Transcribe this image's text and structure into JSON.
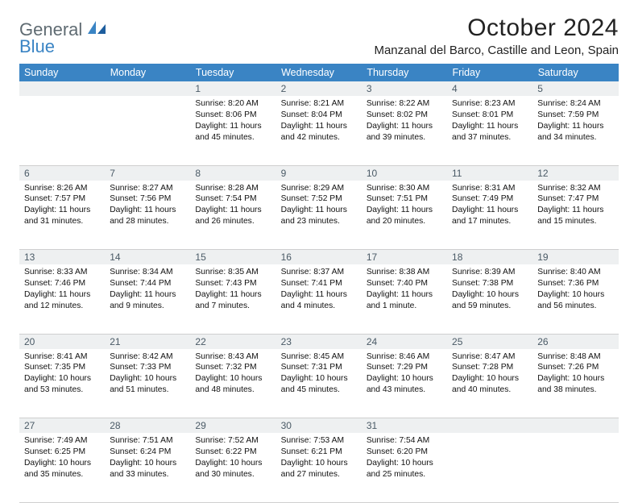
{
  "logo": {
    "general": "General",
    "blue": "Blue"
  },
  "title": "October 2024",
  "location": "Manzanal del Barco, Castille and Leon, Spain",
  "colors": {
    "header_bg": "#3a84c4",
    "header_text": "#ffffff",
    "daynum_bg": "#eef0f1",
    "daynum_text": "#4a5a66",
    "body_text": "#111111",
    "rule": "#cfcfcf",
    "week_rule": "#2b5e8c",
    "logo_gray": "#5f6b72",
    "logo_blue": "#3a84c4"
  },
  "day_headers": [
    "Sunday",
    "Monday",
    "Tuesday",
    "Wednesday",
    "Thursday",
    "Friday",
    "Saturday"
  ],
  "weeks": [
    [
      null,
      null,
      {
        "n": "1",
        "sr": "8:20 AM",
        "ss": "8:06 PM",
        "dl": "11 hours and 45 minutes."
      },
      {
        "n": "2",
        "sr": "8:21 AM",
        "ss": "8:04 PM",
        "dl": "11 hours and 42 minutes."
      },
      {
        "n": "3",
        "sr": "8:22 AM",
        "ss": "8:02 PM",
        "dl": "11 hours and 39 minutes."
      },
      {
        "n": "4",
        "sr": "8:23 AM",
        "ss": "8:01 PM",
        "dl": "11 hours and 37 minutes."
      },
      {
        "n": "5",
        "sr": "8:24 AM",
        "ss": "7:59 PM",
        "dl": "11 hours and 34 minutes."
      }
    ],
    [
      {
        "n": "6",
        "sr": "8:26 AM",
        "ss": "7:57 PM",
        "dl": "11 hours and 31 minutes."
      },
      {
        "n": "7",
        "sr": "8:27 AM",
        "ss": "7:56 PM",
        "dl": "11 hours and 28 minutes."
      },
      {
        "n": "8",
        "sr": "8:28 AM",
        "ss": "7:54 PM",
        "dl": "11 hours and 26 minutes."
      },
      {
        "n": "9",
        "sr": "8:29 AM",
        "ss": "7:52 PM",
        "dl": "11 hours and 23 minutes."
      },
      {
        "n": "10",
        "sr": "8:30 AM",
        "ss": "7:51 PM",
        "dl": "11 hours and 20 minutes."
      },
      {
        "n": "11",
        "sr": "8:31 AM",
        "ss": "7:49 PM",
        "dl": "11 hours and 17 minutes."
      },
      {
        "n": "12",
        "sr": "8:32 AM",
        "ss": "7:47 PM",
        "dl": "11 hours and 15 minutes."
      }
    ],
    [
      {
        "n": "13",
        "sr": "8:33 AM",
        "ss": "7:46 PM",
        "dl": "11 hours and 12 minutes."
      },
      {
        "n": "14",
        "sr": "8:34 AM",
        "ss": "7:44 PM",
        "dl": "11 hours and 9 minutes."
      },
      {
        "n": "15",
        "sr": "8:35 AM",
        "ss": "7:43 PM",
        "dl": "11 hours and 7 minutes."
      },
      {
        "n": "16",
        "sr": "8:37 AM",
        "ss": "7:41 PM",
        "dl": "11 hours and 4 minutes."
      },
      {
        "n": "17",
        "sr": "8:38 AM",
        "ss": "7:40 PM",
        "dl": "11 hours and 1 minute."
      },
      {
        "n": "18",
        "sr": "8:39 AM",
        "ss": "7:38 PM",
        "dl": "10 hours and 59 minutes."
      },
      {
        "n": "19",
        "sr": "8:40 AM",
        "ss": "7:36 PM",
        "dl": "10 hours and 56 minutes."
      }
    ],
    [
      {
        "n": "20",
        "sr": "8:41 AM",
        "ss": "7:35 PM",
        "dl": "10 hours and 53 minutes."
      },
      {
        "n": "21",
        "sr": "8:42 AM",
        "ss": "7:33 PM",
        "dl": "10 hours and 51 minutes."
      },
      {
        "n": "22",
        "sr": "8:43 AM",
        "ss": "7:32 PM",
        "dl": "10 hours and 48 minutes."
      },
      {
        "n": "23",
        "sr": "8:45 AM",
        "ss": "7:31 PM",
        "dl": "10 hours and 45 minutes."
      },
      {
        "n": "24",
        "sr": "8:46 AM",
        "ss": "7:29 PM",
        "dl": "10 hours and 43 minutes."
      },
      {
        "n": "25",
        "sr": "8:47 AM",
        "ss": "7:28 PM",
        "dl": "10 hours and 40 minutes."
      },
      {
        "n": "26",
        "sr": "8:48 AM",
        "ss": "7:26 PM",
        "dl": "10 hours and 38 minutes."
      }
    ],
    [
      {
        "n": "27",
        "sr": "7:49 AM",
        "ss": "6:25 PM",
        "dl": "10 hours and 35 minutes."
      },
      {
        "n": "28",
        "sr": "7:51 AM",
        "ss": "6:24 PM",
        "dl": "10 hours and 33 minutes."
      },
      {
        "n": "29",
        "sr": "7:52 AM",
        "ss": "6:22 PM",
        "dl": "10 hours and 30 minutes."
      },
      {
        "n": "30",
        "sr": "7:53 AM",
        "ss": "6:21 PM",
        "dl": "10 hours and 27 minutes."
      },
      {
        "n": "31",
        "sr": "7:54 AM",
        "ss": "6:20 PM",
        "dl": "10 hours and 25 minutes."
      },
      null,
      null
    ]
  ],
  "labels": {
    "sunrise": "Sunrise:",
    "sunset": "Sunset:",
    "daylight": "Daylight:"
  }
}
